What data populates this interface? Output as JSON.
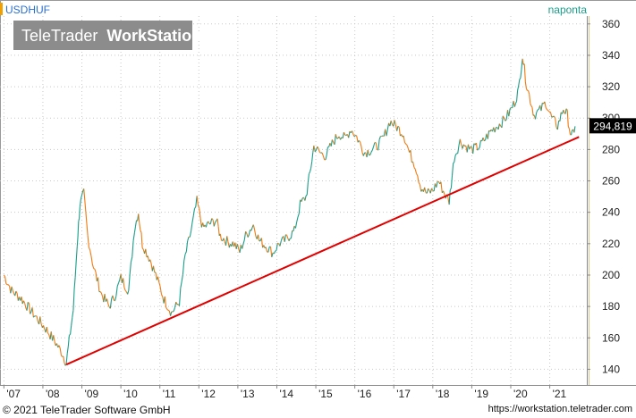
{
  "header": {
    "symbol": "USDHUF",
    "period": "naponta",
    "watermark_brand": "TeleTrader",
    "watermark_product": "WorkStation"
  },
  "footer": {
    "copyright": "© 2021 TeleTrader Software GmbH",
    "url": "https://workstation.teletrader.com"
  },
  "colors": {
    "up": "#1a9e8a",
    "down": "#f07a10",
    "trendline": "#e00000",
    "symbol_text": "#2a6fd0",
    "period_text": "#1a9e8a"
  },
  "chart_data": {
    "type": "line",
    "title": "",
    "xlabel": "",
    "ylabel": "",
    "ylim": [
      130,
      365
    ],
    "y_ticks": [
      140,
      160,
      180,
      200,
      220,
      240,
      260,
      280,
      300,
      320,
      340,
      360
    ],
    "x_ticks": [
      "'07",
      "'08",
      "'09",
      "'10",
      "'11",
      "'12",
      "'13",
      "'14",
      "'15",
      "'16",
      "'17",
      "'18",
      "'19",
      "'20",
      "'21"
    ],
    "last_value": 294.819,
    "last_label": "294,819",
    "series": [
      {
        "points": [
          [
            2007.0,
            200
          ],
          [
            2007.2,
            190
          ],
          [
            2007.45,
            185
          ],
          [
            2007.7,
            177
          ],
          [
            2007.9,
            171
          ],
          [
            2008.1,
            165
          ],
          [
            2008.3,
            158
          ],
          [
            2008.5,
            150
          ],
          [
            2008.6,
            144
          ],
          [
            2008.78,
            178
          ],
          [
            2008.88,
            220
          ],
          [
            2008.95,
            245
          ],
          [
            2009.05,
            252
          ],
          [
            2009.15,
            225
          ],
          [
            2009.3,
            205
          ],
          [
            2009.5,
            188
          ],
          [
            2009.7,
            180
          ],
          [
            2009.85,
            187
          ],
          [
            2010.0,
            198
          ],
          [
            2010.2,
            190
          ],
          [
            2010.35,
            230
          ],
          [
            2010.45,
            240
          ],
          [
            2010.55,
            220
          ],
          [
            2010.75,
            210
          ],
          [
            2010.95,
            196
          ],
          [
            2011.1,
            185
          ],
          [
            2011.3,
            176
          ],
          [
            2011.5,
            183
          ],
          [
            2011.65,
            212
          ],
          [
            2011.8,
            228
          ],
          [
            2011.95,
            247
          ],
          [
            2012.1,
            230
          ],
          [
            2012.3,
            233
          ],
          [
            2012.45,
            235
          ],
          [
            2012.55,
            225
          ],
          [
            2012.75,
            221
          ],
          [
            2012.9,
            220
          ],
          [
            2013.05,
            215
          ],
          [
            2013.2,
            225
          ],
          [
            2013.4,
            232
          ],
          [
            2013.55,
            222
          ],
          [
            2013.75,
            218
          ],
          [
            2013.9,
            214
          ],
          [
            2014.05,
            220
          ],
          [
            2014.2,
            222
          ],
          [
            2014.45,
            228
          ],
          [
            2014.6,
            245
          ],
          [
            2014.75,
            250
          ],
          [
            2014.85,
            265
          ],
          [
            2014.95,
            282
          ],
          [
            2015.1,
            278
          ],
          [
            2015.25,
            276
          ],
          [
            2015.45,
            285
          ],
          [
            2015.6,
            290
          ],
          [
            2015.75,
            287
          ],
          [
            2015.9,
            293
          ],
          [
            2016.05,
            288
          ],
          [
            2016.25,
            278
          ],
          [
            2016.45,
            280
          ],
          [
            2016.6,
            283
          ],
          [
            2016.75,
            288
          ],
          [
            2016.9,
            298
          ],
          [
            2017.05,
            295
          ],
          [
            2017.25,
            290
          ],
          [
            2017.4,
            278
          ],
          [
            2017.55,
            270
          ],
          [
            2017.7,
            256
          ],
          [
            2017.85,
            252
          ],
          [
            2018.0,
            254
          ],
          [
            2018.15,
            260
          ],
          [
            2018.3,
            252
          ],
          [
            2018.42,
            247
          ],
          [
            2018.55,
            275
          ],
          [
            2018.7,
            285
          ],
          [
            2018.85,
            282
          ],
          [
            2019.0,
            280
          ],
          [
            2019.2,
            282
          ],
          [
            2019.35,
            287
          ],
          [
            2019.5,
            292
          ],
          [
            2019.65,
            295
          ],
          [
            2019.8,
            298
          ],
          [
            2019.95,
            303
          ],
          [
            2020.1,
            310
          ],
          [
            2020.2,
            318
          ],
          [
            2020.3,
            340
          ],
          [
            2020.4,
            322
          ],
          [
            2020.5,
            312
          ],
          [
            2020.6,
            302
          ],
          [
            2020.75,
            305
          ],
          [
            2020.9,
            310
          ],
          [
            2021.05,
            300
          ],
          [
            2021.2,
            295
          ],
          [
            2021.35,
            306
          ],
          [
            2021.45,
            302
          ],
          [
            2021.55,
            287
          ],
          [
            2021.65,
            294.8
          ]
        ]
      }
    ],
    "trendline": [
      [
        2008.6,
        143
      ],
      [
        2021.75,
        288
      ]
    ]
  }
}
